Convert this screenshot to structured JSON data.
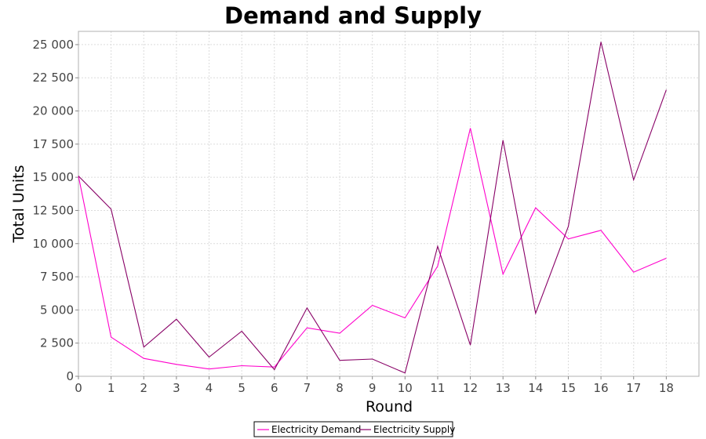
{
  "chart_data": {
    "type": "line",
    "title": "Demand and Supply",
    "xlabel": "Round",
    "ylabel": "Total Units",
    "x": [
      0,
      1,
      2,
      3,
      4,
      5,
      6,
      7,
      8,
      9,
      10,
      11,
      12,
      13,
      14,
      15,
      16,
      17,
      18
    ],
    "xlim": [
      0,
      19
    ],
    "ylim": [
      0,
      26000
    ],
    "yticks": [
      0,
      2500,
      5000,
      7500,
      10000,
      12500,
      15000,
      17500,
      20000,
      22500,
      25000
    ],
    "ytick_labels": [
      "0",
      "2 500",
      "5 000",
      "7 500",
      "10 000",
      "12 500",
      "15 000",
      "17 500",
      "20 000",
      "22 500",
      "25 000"
    ],
    "grid": true,
    "legend_position": "bottom",
    "series": [
      {
        "name": "Electricity Demand",
        "color": "#ff00cc",
        "values": [
          15100,
          2950,
          1350,
          900,
          550,
          800,
          700,
          3650,
          3250,
          5350,
          4400,
          8300,
          18700,
          7700,
          12700,
          10350,
          11000,
          7850,
          8900
        ]
      },
      {
        "name": "Electricity Supply",
        "color": "#880066",
        "values": [
          15100,
          12600,
          2200,
          4300,
          1450,
          3400,
          500,
          5150,
          1200,
          1300,
          250,
          9800,
          2350,
          17800,
          4750,
          11300,
          25200,
          14800,
          21600
        ]
      }
    ]
  }
}
